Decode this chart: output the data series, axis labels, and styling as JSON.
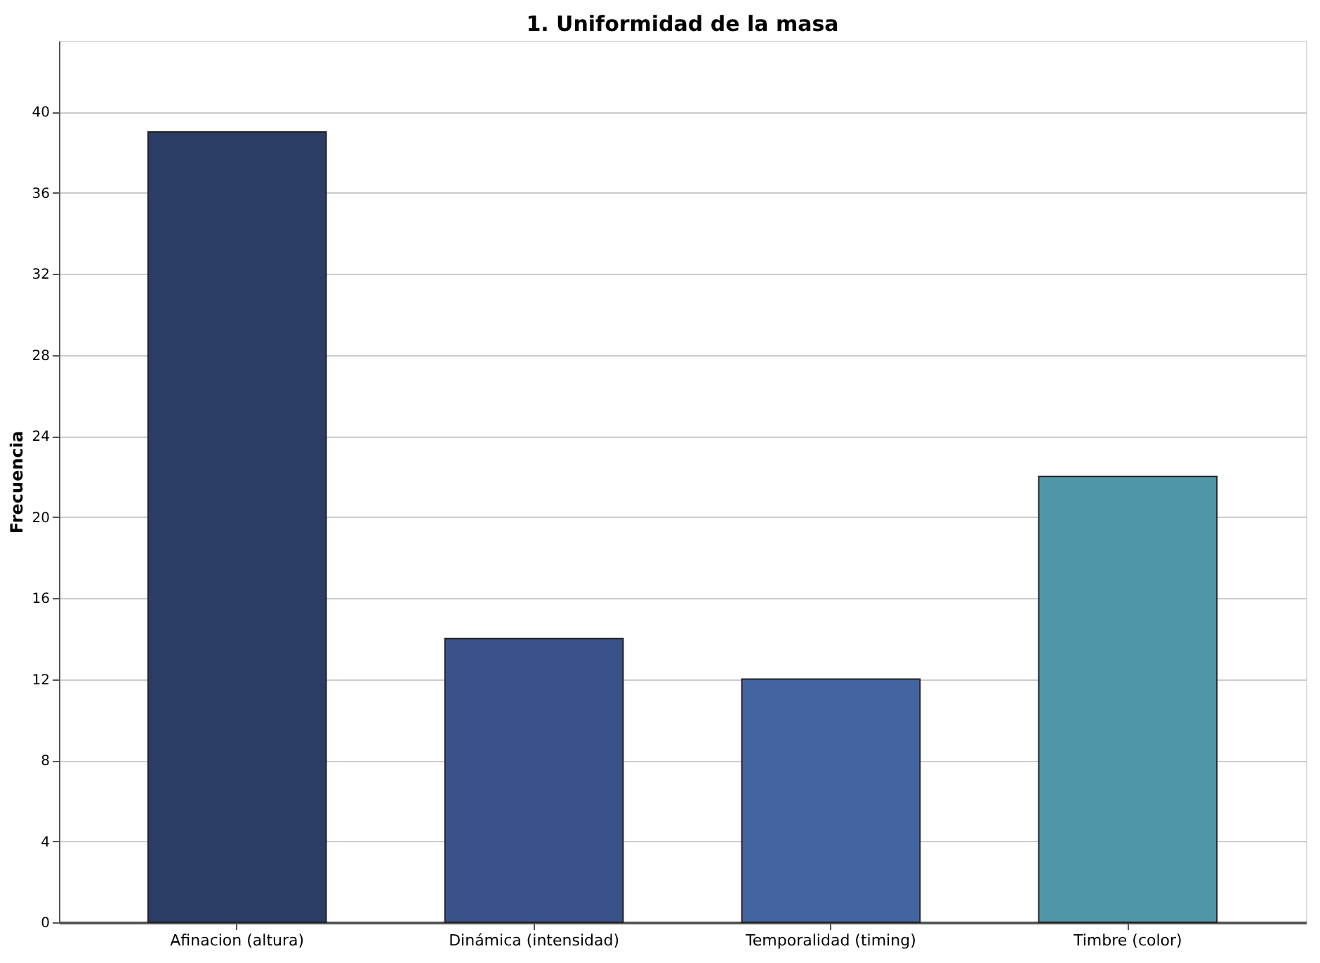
{
  "chart_data": {
    "type": "bar",
    "title": "1. Uniformidad de la masa",
    "ylabel": "Frecuencia",
    "categories": [
      "Afinacion (altura)",
      "Dinámica (intensidad)",
      "Temporalidad (timing)",
      "Timbre (color)"
    ],
    "values": [
      39,
      14,
      12,
      22
    ],
    "colors": [
      "#2b3d64",
      "#3a5189",
      "#4464a1",
      "#4f97a8"
    ],
    "ylim": [
      0,
      43.5
    ],
    "yticks": [
      0,
      4,
      8,
      12,
      16,
      20,
      24,
      28,
      32,
      36,
      40
    ],
    "grid": "y"
  }
}
